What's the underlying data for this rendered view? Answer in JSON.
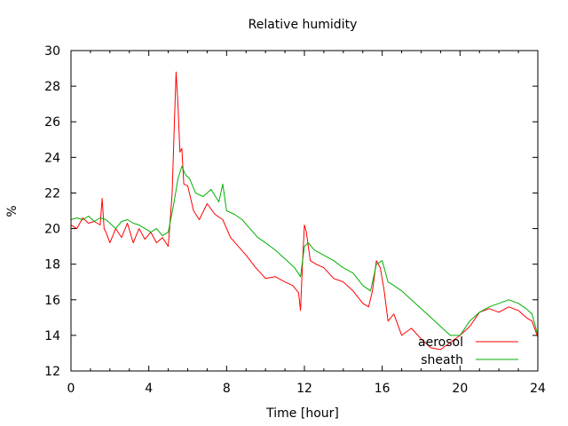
{
  "chart_data": {
    "type": "line",
    "title": "Relative humidity",
    "xlabel": "Time [hour]",
    "ylabel": "%",
    "xlim": [
      0,
      24
    ],
    "ylim": [
      12,
      30
    ],
    "xticks": [
      0,
      4,
      8,
      12,
      16,
      20,
      24
    ],
    "yticks": [
      12,
      14,
      16,
      18,
      20,
      22,
      24,
      26,
      28,
      30
    ],
    "grid": false,
    "legend_position": "bottom-right",
    "series": [
      {
        "name": "aerosol",
        "color": "#ff0000",
        "x": [
          0,
          0.3,
          0.6,
          0.9,
          1.2,
          1.5,
          1.6,
          1.7,
          1.8,
          2.0,
          2.3,
          2.6,
          2.9,
          3.2,
          3.5,
          3.8,
          4.1,
          4.4,
          4.7,
          5.0,
          5.2,
          5.3,
          5.4,
          5.5,
          5.6,
          5.7,
          5.8,
          6.0,
          6.3,
          6.6,
          7.0,
          7.4,
          7.8,
          8.2,
          8.6,
          9.0,
          9.5,
          10.0,
          10.5,
          11.0,
          11.4,
          11.7,
          11.8,
          11.9,
          12.0,
          12.1,
          12.3,
          12.6,
          13.0,
          13.5,
          14.0,
          14.5,
          15.0,
          15.3,
          15.5,
          15.7,
          15.9,
          16.1,
          16.3,
          16.6,
          17.0,
          17.5,
          18.0,
          18.5,
          19.0,
          19.5,
          20.0,
          20.5,
          21.0,
          21.5,
          22.0,
          22.5,
          23.0,
          23.4,
          23.7,
          24.0
        ],
        "y": [
          20.2,
          20.0,
          20.6,
          20.3,
          20.4,
          20.2,
          21.7,
          20.0,
          19.8,
          19.2,
          20.0,
          19.5,
          20.3,
          19.2,
          20.0,
          19.4,
          19.8,
          19.2,
          19.5,
          19.0,
          22.0,
          25.5,
          28.8,
          27.0,
          24.3,
          24.5,
          22.5,
          22.4,
          21.0,
          20.5,
          21.4,
          20.8,
          20.5,
          19.5,
          19.0,
          18.5,
          17.8,
          17.2,
          17.3,
          17.0,
          16.8,
          16.4,
          15.4,
          18.0,
          20.2,
          19.8,
          18.2,
          18.0,
          17.8,
          17.2,
          17.0,
          16.5,
          15.8,
          15.6,
          16.5,
          18.2,
          17.8,
          16.5,
          14.8,
          15.2,
          14.0,
          14.4,
          13.8,
          13.3,
          13.2,
          13.6,
          14.0,
          14.5,
          15.3,
          15.5,
          15.3,
          15.6,
          15.4,
          15.0,
          14.8,
          13.9
        ]
      },
      {
        "name": "sheath",
        "color": "#00b000",
        "x": [
          0,
          0.3,
          0.6,
          0.9,
          1.2,
          1.5,
          1.8,
          2.0,
          2.3,
          2.6,
          2.9,
          3.2,
          3.5,
          3.8,
          4.1,
          4.4,
          4.7,
          5.0,
          5.3,
          5.5,
          5.7,
          5.9,
          6.1,
          6.4,
          6.8,
          7.2,
          7.6,
          7.8,
          8.0,
          8.4,
          8.8,
          9.2,
          9.6,
          10.0,
          10.5,
          11.0,
          11.5,
          11.8,
          12.0,
          12.2,
          12.5,
          13.0,
          13.5,
          14.0,
          14.5,
          15.0,
          15.4,
          15.7,
          16.0,
          16.3,
          16.6,
          17.0,
          17.5,
          18.0,
          18.5,
          19.0,
          19.5,
          20.0,
          20.5,
          21.0,
          21.5,
          22.0,
          22.5,
          23.0,
          23.4,
          23.7,
          24.0
        ],
        "y": [
          20.5,
          20.6,
          20.5,
          20.7,
          20.4,
          20.6,
          20.5,
          20.3,
          20.0,
          20.4,
          20.5,
          20.3,
          20.2,
          20.0,
          19.8,
          20.0,
          19.6,
          19.8,
          21.5,
          22.8,
          23.5,
          23.0,
          22.8,
          22.0,
          21.8,
          22.2,
          21.5,
          22.5,
          21.0,
          20.8,
          20.5,
          20.0,
          19.5,
          19.2,
          18.8,
          18.3,
          17.8,
          17.3,
          19.0,
          19.2,
          18.8,
          18.5,
          18.2,
          17.8,
          17.5,
          16.8,
          16.5,
          18.0,
          18.2,
          17.0,
          16.8,
          16.5,
          16.0,
          15.5,
          15.0,
          14.5,
          14.0,
          14.0,
          14.8,
          15.3,
          15.6,
          15.8,
          16.0,
          15.8,
          15.5,
          15.2,
          14.0
        ]
      }
    ]
  }
}
